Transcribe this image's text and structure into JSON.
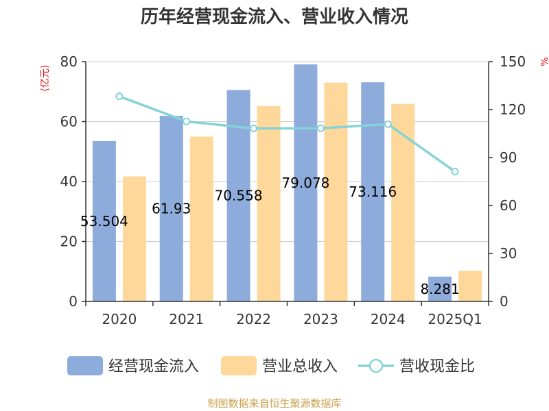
{
  "chart_data": {
    "type": "bar",
    "title": "历年经营现金流入、营业收入情况",
    "categories": [
      "2020",
      "2021",
      "2022",
      "2023",
      "2024",
      "2025Q1"
    ],
    "series": [
      {
        "name": "经营现金流入",
        "type": "bar",
        "axis": "left",
        "color": "#8eacdb",
        "values": [
          53.504,
          61.93,
          70.558,
          79.078,
          73.116,
          8.281
        ],
        "labels": [
          "53.504",
          "61.93",
          "70.558",
          "79.078",
          "73.116",
          "8.281"
        ]
      },
      {
        "name": "营业总收入",
        "type": "bar",
        "axis": "left",
        "color": "#fdd89a",
        "values": [
          41.7,
          55.0,
          65.2,
          73.0,
          65.9,
          10.2
        ]
      },
      {
        "name": "营收现金比",
        "type": "line",
        "axis": "right",
        "color": "#84d3d8",
        "values": [
          128.3,
          112.6,
          108.2,
          108.3,
          110.9,
          81.2
        ]
      }
    ],
    "ylim_left": [
      0,
      80
    ],
    "yticks_left": [
      0,
      20,
      40,
      60,
      80
    ],
    "ylabel_left": "(亿元)",
    "ylim_right": [
      0,
      150
    ],
    "yticks_right": [
      0,
      30,
      60,
      90,
      120,
      150
    ],
    "ylabel_right": "%",
    "grid": true,
    "legend_position": "bottom",
    "unit_color": "#e8141a"
  },
  "source_text": "制图数据来自恒生聚源数据库",
  "source_color": "#c8a04a"
}
